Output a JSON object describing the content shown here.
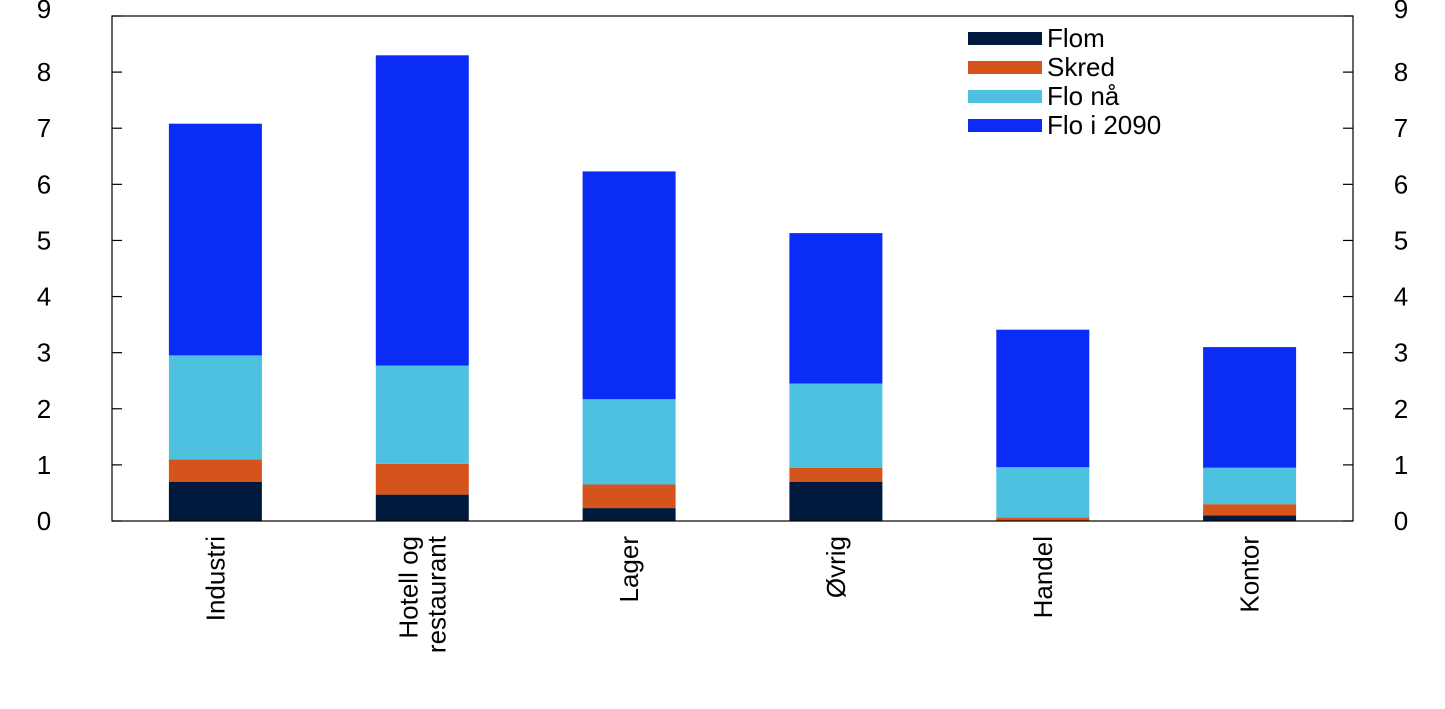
{
  "chart_data": {
    "type": "bar",
    "stacked": true,
    "title": "",
    "xlabel": "",
    "ylabel": "",
    "ylim": [
      0,
      9
    ],
    "yticks": [
      0,
      1,
      2,
      3,
      4,
      5,
      6,
      7,
      8,
      9
    ],
    "right_axis_ticks": true,
    "grid": false,
    "legend_position": "top-right",
    "categories": [
      [
        "Industri"
      ],
      [
        "Hotell og",
        "restaurant"
      ],
      [
        "Lager"
      ],
      [
        "Øvrig"
      ],
      [
        "Handel"
      ],
      [
        "Kontor"
      ]
    ],
    "series": [
      {
        "name": "Flom",
        "color": "#001a3d",
        "values": [
          0.7,
          0.47,
          0.23,
          0.7,
          0.0,
          0.1
        ]
      },
      {
        "name": "Skred",
        "color": "#d4541c",
        "values": [
          0.4,
          0.55,
          0.42,
          0.25,
          0.06,
          0.2
        ]
      },
      {
        "name": "Flo nå",
        "color": "#4fc1e0",
        "values": [
          1.85,
          1.75,
          1.52,
          1.5,
          0.9,
          0.65
        ]
      },
      {
        "name": "Flo i 2090",
        "color": "#0a2cf5",
        "values": [
          4.13,
          5.53,
          4.06,
          2.68,
          2.45,
          2.15
        ]
      }
    ]
  }
}
